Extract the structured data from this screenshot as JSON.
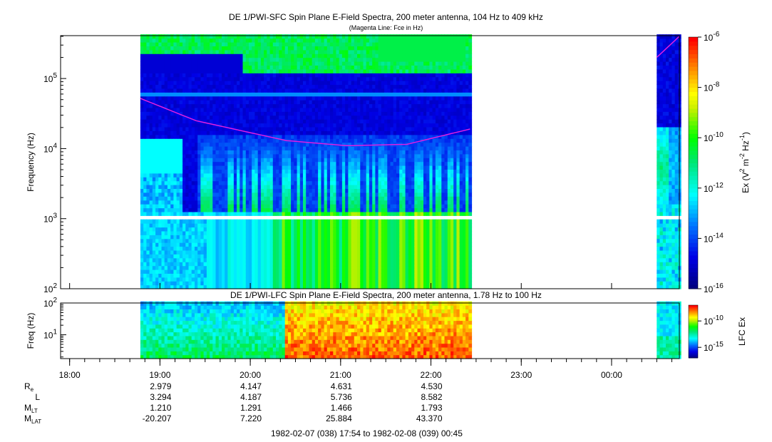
{
  "chart_data": [
    {
      "type": "heatmap",
      "title": "DE 1/PWI-SFC  Spin Plane E-Field Spectra, 200 meter antenna, 104 Hz to 409 kHz",
      "subtitle": "(Magenta Line: Fce in Hz)",
      "ylabel": "Frequency (Hz)",
      "yscale": "log",
      "ylim": [
        100,
        409000
      ],
      "yticks": [
        {
          "v": 100,
          "b": "10",
          "e": "2"
        },
        {
          "v": 1000,
          "b": "10",
          "e": "3"
        },
        {
          "v": 10000,
          "b": "10",
          "e": "4"
        },
        {
          "v": 100000,
          "b": "10",
          "e": "5"
        }
      ],
      "colorbar": {
        "label": "Ex (V² m⁻² Hz⁻¹)",
        "label_parts": [
          "Ex (V",
          "2",
          " m",
          "-2",
          " Hz",
          "-1",
          ")"
        ],
        "range_log10": [
          -16,
          -6
        ],
        "ticks": [
          {
            "b": "10",
            "e": "-6",
            "v": -6
          },
          {
            "b": "10",
            "e": "-8",
            "v": -8
          },
          {
            "b": "10",
            "e": "-10",
            "v": -10
          },
          {
            "b": "10",
            "e": "-12",
            "v": -12
          },
          {
            "b": "10",
            "e": "-14",
            "v": -14
          },
          {
            "b": "10",
            "e": "-16",
            "v": -16
          }
        ]
      },
      "data_segments_min": [
        [
          53,
          272
        ],
        [
          396,
          411
        ]
      ],
      "fce_line_hz": [
        [
          53,
          52000
        ],
        [
          90,
          25000
        ],
        [
          150,
          13000
        ],
        [
          190,
          11000
        ],
        [
          230,
          11500
        ],
        [
          272,
          19000
        ],
        [
          396,
          200000
        ],
        [
          411,
          400000
        ]
      ]
    },
    {
      "type": "heatmap",
      "title": "DE 1/PWI-LFC  Spin Plane E-Field Spectra, 200 meter antenna, 1.78 Hz to 100 Hz",
      "ylabel": "Freq (Hz)",
      "yscale": "log",
      "ylim": [
        1.78,
        100
      ],
      "yticks": [
        {
          "v": 100,
          "b": "10",
          "e": "2"
        },
        {
          "v": 10,
          "b": "10",
          "e": "1"
        }
      ],
      "colorbar": {
        "label": "LFC Ex",
        "range_log10": [
          -17,
          -7
        ],
        "ticks": [
          {
            "b": "10",
            "e": "-10",
            "v": -10
          },
          {
            "b": "10",
            "e": "-15",
            "v": -15
          }
        ]
      },
      "data_segments_min": [
        [
          53,
          272
        ],
        [
          396,
          411
        ]
      ]
    }
  ],
  "x_axis": {
    "range_label": "1982-02-07 (038) 17:54 to 1982-02-08 (039) 00:45",
    "start_min_after_1754": 0,
    "end_min": 411,
    "ticks": [
      {
        "label": "18:00",
        "m": 6
      },
      {
        "label": "19:00",
        "m": 66
      },
      {
        "label": "20:00",
        "m": 126
      },
      {
        "label": "21:00",
        "m": 186
      },
      {
        "label": "22:00",
        "m": 246
      },
      {
        "label": "23:00",
        "m": 306
      },
      {
        "label": "00:00",
        "m": 366
      }
    ]
  },
  "ephemeris": {
    "rows": [
      {
        "label": "R",
        "sub": "e",
        "values": [
          "2.979",
          "4.147",
          "4.631",
          "4.530"
        ]
      },
      {
        "label": "L",
        "sub": "",
        "values": [
          "3.294",
          "4.187",
          "5.736",
          "8.582"
        ]
      },
      {
        "label": "M",
        "sub": "LT",
        "values": [
          "1.210",
          "1.291",
          "1.466",
          "1.793"
        ]
      },
      {
        "label": "M",
        "sub": "LAT",
        "values": [
          "-20.207",
          "7.220",
          "25.884",
          "43.370"
        ]
      }
    ]
  },
  "colors": {
    "fce": "#e020e0"
  }
}
